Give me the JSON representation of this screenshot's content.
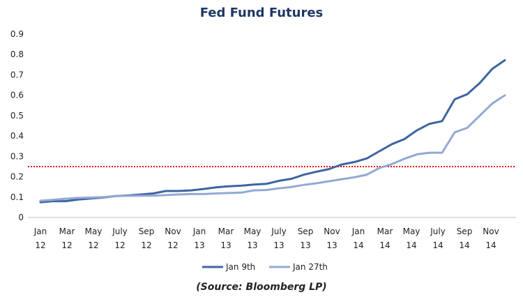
{
  "chart_data": {
    "type": "line",
    "title": "Fed Fund Futures",
    "source": "(Source: Bloomberg LP)",
    "xlabel": "",
    "ylabel": "",
    "ylim": [
      0,
      0.9
    ],
    "yticks": [
      "0",
      "0.1",
      "0.2",
      "0.3",
      "0.4",
      "0.5",
      "0.6",
      "0.7",
      "0.8",
      "0.9"
    ],
    "x_tick_labels": [
      {
        "month": "Jan",
        "year": "12"
      },
      {
        "month": "Mar",
        "year": "12"
      },
      {
        "month": "May",
        "year": "12"
      },
      {
        "month": "July",
        "year": "12"
      },
      {
        "month": "Sep",
        "year": "12"
      },
      {
        "month": "Nov",
        "year": "12"
      },
      {
        "month": "Jan",
        "year": "13"
      },
      {
        "month": "Mar",
        "year": "13"
      },
      {
        "month": "May",
        "year": "13"
      },
      {
        "month": "July",
        "year": "13"
      },
      {
        "month": "Sep",
        "year": "13"
      },
      {
        "month": "Nov",
        "year": "13"
      },
      {
        "month": "Jan",
        "year": "14"
      },
      {
        "month": "Mar",
        "year": "14"
      },
      {
        "month": "May",
        "year": "14"
      },
      {
        "month": "July",
        "year": "14"
      },
      {
        "month": "Sep",
        "year": "14"
      },
      {
        "month": "Nov",
        "year": "14"
      }
    ],
    "reference_line": {
      "value": 0.25,
      "color": "#e60000",
      "style": "dotted"
    },
    "series": [
      {
        "name": "Jan 9th",
        "color": "#3d64a0",
        "values": [
          0.075,
          0.08,
          0.08,
          0.088,
          0.093,
          0.098,
          0.105,
          0.108,
          0.113,
          0.118,
          0.13,
          0.13,
          0.133,
          0.14,
          0.148,
          0.153,
          0.156,
          0.162,
          0.165,
          0.18,
          0.19,
          0.21,
          0.225,
          0.238,
          0.26,
          0.272,
          0.29,
          0.325,
          0.36,
          0.385,
          0.428,
          0.46,
          0.473,
          0.58,
          0.605,
          0.66,
          0.73,
          0.772
        ]
      },
      {
        "name": "Jan 27th",
        "color": "#92a9d3",
        "values": [
          0.082,
          0.087,
          0.092,
          0.096,
          0.098,
          0.1,
          0.105,
          0.106,
          0.107,
          0.107,
          0.11,
          0.113,
          0.115,
          0.115,
          0.118,
          0.12,
          0.122,
          0.133,
          0.135,
          0.143,
          0.15,
          0.16,
          0.168,
          0.178,
          0.188,
          0.197,
          0.21,
          0.243,
          0.262,
          0.288,
          0.31,
          0.318,
          0.318,
          0.418,
          0.44,
          0.5,
          0.56,
          0.6
        ]
      }
    ]
  }
}
